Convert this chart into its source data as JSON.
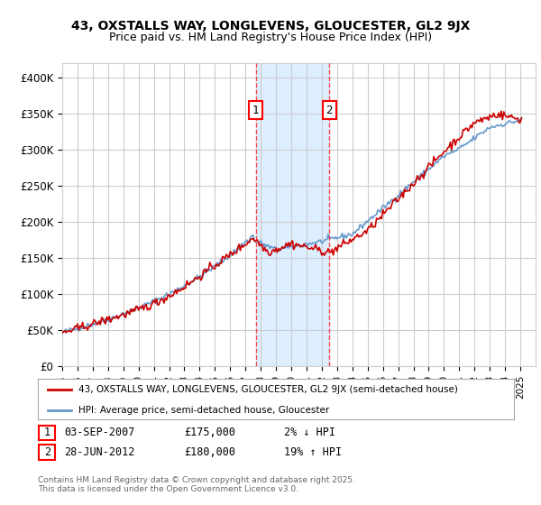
{
  "title1": "43, OXSTALLS WAY, LONGLEVENS, GLOUCESTER, GL2 9JX",
  "title2": "Price paid vs. HM Land Registry's House Price Index (HPI)",
  "ylabel_ticks": [
    "£0",
    "£50K",
    "£100K",
    "£150K",
    "£200K",
    "£250K",
    "£300K",
    "£350K",
    "£400K"
  ],
  "ytick_vals": [
    0,
    50000,
    100000,
    150000,
    200000,
    250000,
    300000,
    350000,
    400000
  ],
  "ylim": [
    0,
    420000
  ],
  "xlim_start": 1995,
  "xlim_end": 2026,
  "transaction1_x": 2007.67,
  "transaction1_y": 175000,
  "transaction1_label": "03-SEP-2007",
  "transaction1_price": "£175,000",
  "transaction1_pct": "2% ↓ HPI",
  "transaction2_x": 2012.49,
  "transaction2_y": 180000,
  "transaction2_label": "28-JUN-2012",
  "transaction2_price": "£180,000",
  "transaction2_pct": "19% ↑ HPI",
  "shade_x1": 2007.67,
  "shade_x2": 2012.49,
  "line1_label": "43, OXSTALLS WAY, LONGLEVENS, GLOUCESTER, GL2 9JX (semi-detached house)",
  "line2_label": "HPI: Average price, semi-detached house, Gloucester",
  "line1_color": "#cc0000",
  "line2_color": "#6699cc",
  "shade_color": "#ddeeff",
  "grid_color": "#cccccc",
  "footer": "Contains HM Land Registry data © Crown copyright and database right 2025.\nThis data is licensed under the Open Government Licence v3.0.",
  "bg_color": "#ffffff",
  "plot_bg": "#ffffff"
}
